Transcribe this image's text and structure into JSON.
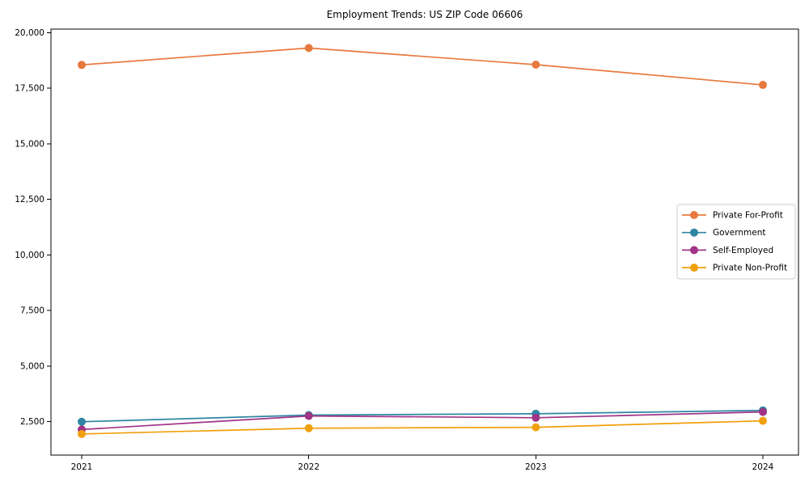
{
  "figure": {
    "background": "#ffffff"
  },
  "chart_data": {
    "type": "line",
    "title": "Employment Trends: US ZIP Code 06606",
    "categories": [
      "2021",
      "2022",
      "2023",
      "2024"
    ],
    "series": [
      {
        "name": "Private For-Profit",
        "color": "#e8793e",
        "values": [
          18550,
          19310,
          18560,
          17650
        ]
      },
      {
        "name": "Government",
        "color": "#2f86a2",
        "values": [
          2500,
          2800,
          2860,
          3010
        ]
      },
      {
        "name": "Self-Employed",
        "color": "#a03486",
        "values": [
          2150,
          2760,
          2680,
          2940
        ]
      },
      {
        "name": "Private Non-Profit",
        "color": "#f0a00c",
        "values": [
          1950,
          2210,
          2250,
          2540
        ]
      }
    ],
    "xlabel": "",
    "ylabel": "",
    "ylim": [
      1000,
      20160
    ],
    "yticks": [
      2500,
      5000,
      7500,
      10000,
      12500,
      15000,
      17500,
      20000
    ],
    "ytick_labels": [
      "2,500",
      "5,000",
      "7,500",
      "10,000",
      "12,500",
      "15,000",
      "17,500",
      "20,000"
    ],
    "grid": false,
    "legend_position": "center-right",
    "marker": "circle",
    "axis_color": "#000000",
    "legend_border_color": "#cccccc"
  }
}
